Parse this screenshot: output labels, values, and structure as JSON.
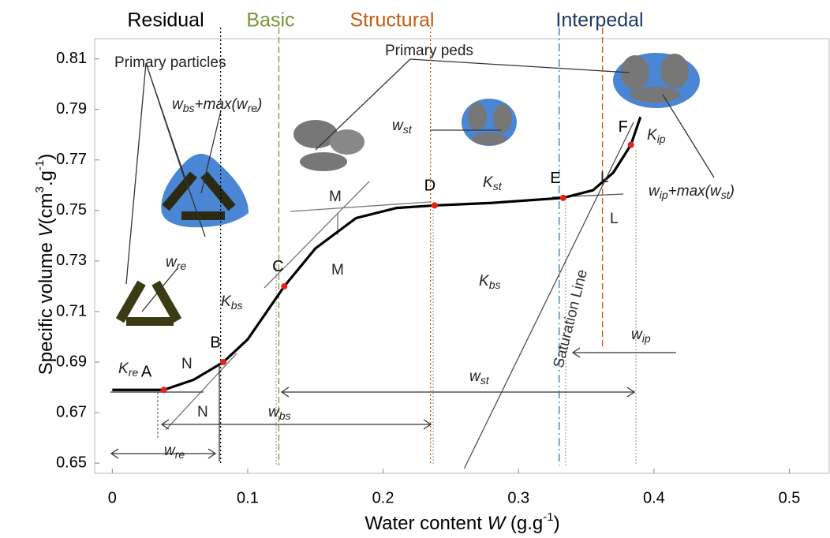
{
  "chart_data": {
    "type": "line",
    "zones": [
      {
        "name": "Residual",
        "color": "#000000",
        "x": 0.08
      },
      {
        "name": "Basic",
        "color": "#77933c",
        "x": 0.123
      },
      {
        "name": "Structural",
        "color": "#c55a11",
        "x": 0.235
      },
      {
        "name": "Interpedal",
        "color": "#1f3864",
        "x": 0.33
      }
    ],
    "zone_boundary_x": 0.362,
    "series": [
      {
        "color": "#000000",
        "x": [
          0,
          0.038,
          0.06,
          0.082,
          0.1,
          0.127,
          0.15,
          0.18,
          0.21,
          0.238,
          0.28,
          0.333,
          0.355,
          0.37,
          0.383,
          0.39
        ],
        "values": [
          0.679,
          0.679,
          0.683,
          0.69,
          0.699,
          0.72,
          0.735,
          0.747,
          0.751,
          0.752,
          0.753,
          0.755,
          0.758,
          0.765,
          0.776,
          0.787
        ]
      },
      {
        "name": "Saturation Line",
        "color": "#444444",
        "x": [
          0.26,
          0.385
        ],
        "values": [
          0.648,
          0.785
        ]
      }
    ],
    "points": {
      "labels": [
        "A",
        "B",
        "C",
        "D",
        "E",
        "F"
      ],
      "x": [
        0.038,
        0.082,
        0.127,
        0.238,
        0.333,
        0.383
      ],
      "values": [
        0.679,
        0.69,
        0.72,
        0.752,
        0.755,
        0.776
      ],
      "color": "#e8201c"
    },
    "annotations": [
      [
        "Primary particles"
      ],
      [
        "Primary peds"
      ],
      [
        "w",
        "bs",
        "+max(",
        "w",
        "re",
        ")"
      ],
      [
        "w",
        "st"
      ],
      [
        "w",
        "re"
      ],
      [
        "K",
        "re"
      ],
      [
        "K",
        "bs"
      ],
      [
        "K",
        "st"
      ],
      [
        "K",
        "bs"
      ],
      [
        "K",
        "ip"
      ],
      [
        "w",
        "ip",
        "+max(",
        "w",
        "st",
        ")"
      ],
      [
        "w",
        "ip"
      ],
      [
        "w",
        "st"
      ],
      [
        "w",
        "bs"
      ],
      [
        "w",
        "re"
      ],
      [
        "M"
      ],
      [
        "M"
      ],
      [
        "N"
      ],
      [
        "N"
      ],
      [
        "L"
      ],
      [
        "L"
      ]
    ],
    "xlabel": [
      "Water content ",
      "W",
      " (g.g",
      "-1",
      ")"
    ],
    "ylabel": [
      "Specific volume ",
      "V",
      "(cm",
      "3",
      ".g",
      "-1",
      ")"
    ],
    "xlim": [
      -0.013,
      0.53
    ],
    "ylim": [
      0.646,
      0.818
    ],
    "xticks": [
      0,
      0.1,
      0.2,
      0.3,
      0.4,
      0.5
    ],
    "yticks": [
      0.65,
      0.67,
      0.69,
      0.71,
      0.73,
      0.75,
      0.77,
      0.79,
      0.81
    ]
  }
}
